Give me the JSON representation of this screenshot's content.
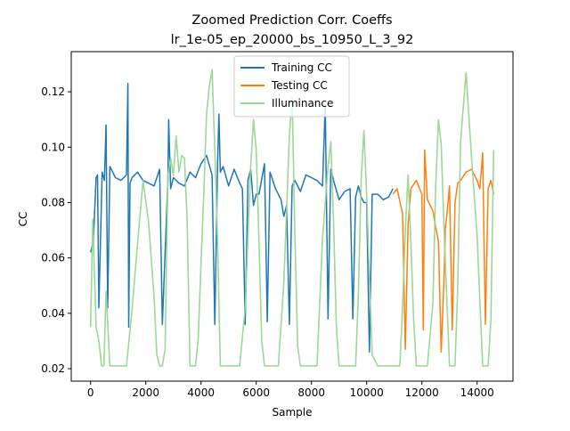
{
  "chart_data": {
    "type": "line",
    "title": "Zoomed Prediction Corr. Coeffs",
    "subtitle": "lr_1e-05_ep_20000_bs_10950_L_3_92",
    "xlabel": "Sample",
    "ylabel": "CC",
    "xlim": [
      -700,
      15300
    ],
    "ylim": [
      0.0155,
      0.1345
    ],
    "xticks": [
      0,
      2000,
      4000,
      6000,
      8000,
      10000,
      12000,
      14000
    ],
    "xtick_labels": [
      "0",
      "2000",
      "4000",
      "6000",
      "8000",
      "10000",
      "12000",
      "14000"
    ],
    "yticks": [
      0.02,
      0.04,
      0.06,
      0.08,
      0.1,
      0.12
    ],
    "ytick_labels": [
      "0.02",
      "0.04",
      "0.06",
      "0.08",
      "0.10",
      "0.12"
    ],
    "grid": false,
    "legend_position": "upper center",
    "series": [
      {
        "name": "Training CC",
        "color": "#1f77b4",
        "x": [
          0,
          100,
          200,
          250,
          300,
          420,
          500,
          560,
          620,
          700,
          900,
          1100,
          1300,
          1350,
          1380,
          1430,
          1500,
          1700,
          1900,
          2100,
          2300,
          2500,
          2600,
          2800,
          2830,
          2900,
          3000,
          3200,
          3400,
          3600,
          3800,
          4000,
          4200,
          4400,
          4500,
          4600,
          4650,
          4700,
          4800,
          5000,
          5200,
          5400,
          5500,
          5600,
          5700,
          5800,
          5900,
          6000,
          6100,
          6300,
          6400,
          6500,
          6700,
          6900,
          7000,
          7100,
          7200,
          7300,
          7400,
          7600,
          7800,
          8000,
          8200,
          8400,
          8500,
          8600,
          8700,
          8800,
          9000,
          9200,
          9400,
          9500,
          9600,
          9700,
          9800,
          9900,
          10000,
          10100,
          10200,
          10400,
          10600,
          10800,
          10950
        ],
        "y": [
          0.062,
          0.066,
          0.089,
          0.09,
          0.042,
          0.091,
          0.088,
          0.108,
          0.042,
          0.093,
          0.089,
          0.088,
          0.09,
          0.123,
          0.035,
          0.087,
          0.089,
          0.091,
          0.088,
          0.087,
          0.086,
          0.092,
          0.036,
          0.088,
          0.11,
          0.085,
          0.089,
          0.087,
          0.086,
          0.091,
          0.089,
          0.094,
          0.097,
          0.09,
          0.036,
          0.094,
          0.112,
          0.091,
          0.093,
          0.086,
          0.092,
          0.087,
          0.085,
          0.036,
          0.088,
          0.092,
          0.079,
          0.083,
          0.083,
          0.094,
          0.037,
          0.091,
          0.085,
          0.081,
          0.075,
          0.079,
          0.036,
          0.086,
          0.088,
          0.084,
          0.09,
          0.089,
          0.088,
          0.086,
          0.115,
          0.038,
          0.092,
          0.088,
          0.081,
          0.084,
          0.085,
          0.038,
          0.082,
          0.086,
          0.082,
          0.08,
          0.08,
          0.026,
          0.083,
          0.083,
          0.081,
          0.082,
          0.085
        ]
      },
      {
        "name": "Testing CC",
        "color": "#ff7f0e",
        "x": [
          10950,
          11100,
          11300,
          11400,
          11500,
          11600,
          11800,
          12000,
          12050,
          12100,
          12200,
          12400,
          12500,
          12600,
          12700,
          12800,
          12850,
          12900,
          13000,
          13100,
          13200,
          13300,
          13400,
          13600,
          13800,
          14000,
          14100,
          14200,
          14300,
          14400,
          14500,
          14600
        ],
        "y": [
          0.083,
          0.085,
          0.076,
          0.027,
          0.072,
          0.085,
          0.088,
          0.083,
          0.034,
          0.099,
          0.081,
          0.077,
          0.071,
          0.066,
          0.026,
          0.052,
          0.071,
          0.075,
          0.086,
          0.034,
          0.08,
          0.087,
          0.088,
          0.091,
          0.092,
          0.088,
          0.085,
          0.098,
          0.036,
          0.085,
          0.088,
          0.083
        ]
      },
      {
        "name": "Illuminance",
        "color": "#98d594",
        "x": [
          0,
          80,
          200,
          300,
          400,
          480,
          560,
          700,
          1000,
          1300,
          1500,
          1700,
          1900,
          2100,
          2300,
          2400,
          2500,
          2600,
          2700,
          2800,
          2900,
          3000,
          3100,
          3200,
          3300,
          3400,
          3500,
          3600,
          3700,
          3800,
          3900,
          4000,
          4100,
          4200,
          4300,
          4400,
          4500,
          4600,
          4700,
          4800,
          4900,
          5000,
          5200,
          5400,
          5600,
          5800,
          5900,
          6000,
          6100,
          6200,
          6300,
          6400,
          6600,
          6800,
          7000,
          7200,
          7300,
          7400,
          7500,
          7600,
          7700,
          7800,
          8000,
          8200,
          8400,
          8600,
          8700,
          8800,
          8900,
          9000,
          9100,
          9200,
          9400,
          9600,
          9700,
          9800,
          9900,
          10000,
          10100,
          10200,
          10400,
          10600,
          10800,
          11000,
          11200,
          11300,
          11400,
          11500,
          11600,
          11700,
          11800,
          12000,
          12200,
          12400,
          12500,
          12600,
          12700,
          12800,
          12900,
          13000,
          13100,
          13200,
          13300,
          13400,
          13600,
          13800,
          14000,
          14200,
          14400,
          14500,
          14600
        ],
        "y": [
          0.035,
          0.074,
          0.035,
          0.03,
          0.021,
          0.021,
          0.048,
          0.021,
          0.021,
          0.021,
          0.041,
          0.065,
          0.088,
          0.073,
          0.046,
          0.025,
          0.021,
          0.021,
          0.027,
          0.09,
          0.096,
          0.09,
          0.104,
          0.091,
          0.097,
          0.096,
          0.073,
          0.021,
          0.021,
          0.021,
          0.031,
          0.058,
          0.083,
          0.112,
          0.122,
          0.128,
          0.099,
          0.066,
          0.021,
          0.021,
          0.021,
          0.021,
          0.021,
          0.021,
          0.042,
          0.093,
          0.11,
          0.099,
          0.066,
          0.03,
          0.021,
          0.021,
          0.021,
          0.021,
          0.051,
          0.104,
          0.118,
          0.069,
          0.028,
          0.021,
          0.021,
          0.021,
          0.021,
          0.021,
          0.067,
          0.093,
          0.102,
          0.073,
          0.036,
          0.021,
          0.021,
          0.021,
          0.021,
          0.021,
          0.047,
          0.088,
          0.106,
          0.083,
          0.052,
          0.025,
          0.021,
          0.021,
          0.021,
          0.021,
          0.021,
          0.042,
          0.07,
          0.09,
          0.066,
          0.038,
          0.021,
          0.021,
          0.021,
          0.044,
          0.086,
          0.11,
          0.101,
          0.071,
          0.046,
          0.021,
          0.021,
          0.021,
          0.05,
          0.102,
          0.127,
          0.096,
          0.068,
          0.021,
          0.021,
          0.038,
          0.099
        ]
      }
    ]
  }
}
